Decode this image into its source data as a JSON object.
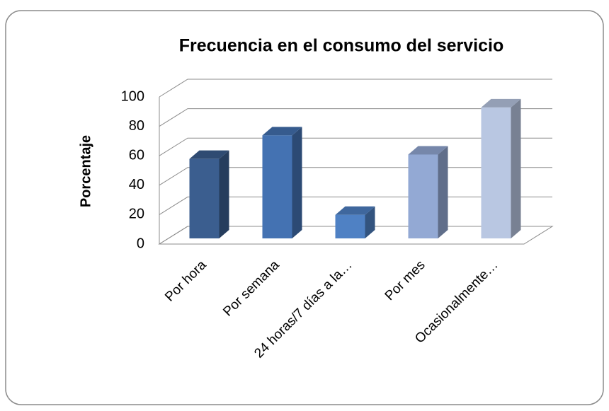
{
  "chart_data": {
    "type": "bar3d",
    "title": "Frecuencia en el consumo del servicio",
    "y_label": "Porcentaje",
    "categories": [
      "Por hora",
      "Por semana",
      "24 horas/7 días a la…",
      "Por mes",
      "Ocasionalmente…"
    ],
    "values": [
      54,
      70,
      16,
      57,
      89
    ],
    "colors": [
      "#3b5e8f",
      "#4472b2",
      "#4f81c4",
      "#93a9d4",
      "#b9c7e2"
    ],
    "ylim": [
      0,
      100
    ],
    "yticks": [
      0,
      20,
      40,
      60,
      80,
      100
    ],
    "grid": true
  }
}
